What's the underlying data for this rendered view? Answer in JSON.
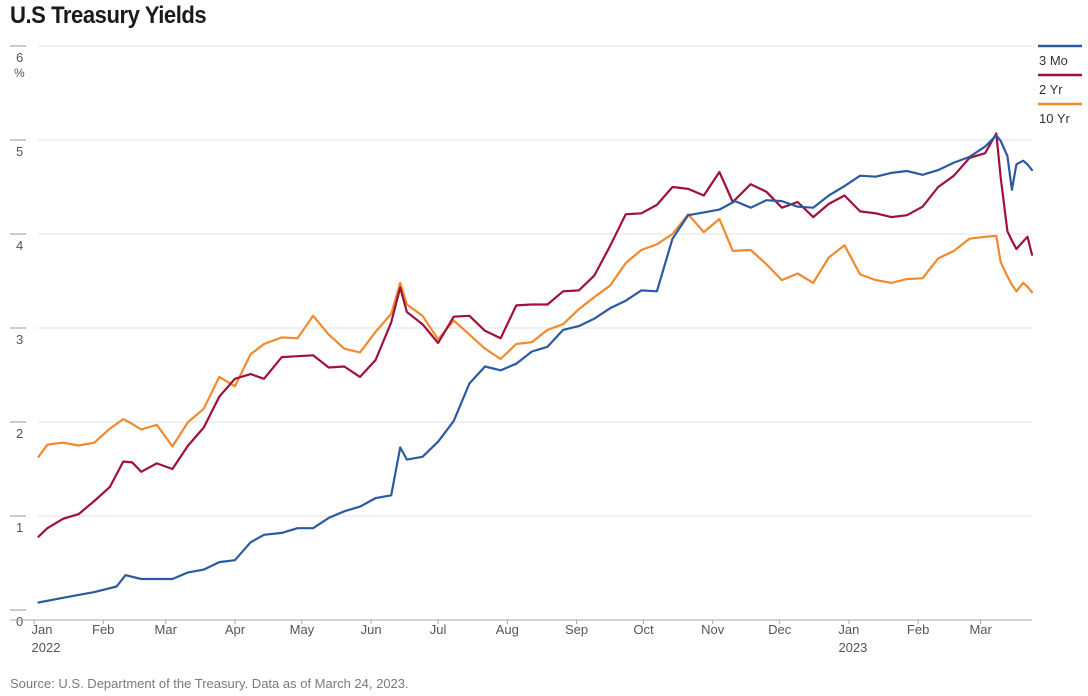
{
  "title": "U.S Treasury Yields",
  "source": "Source: U.S. Department of the Treasury. Data as of March 24, 2023.",
  "chart_data": {
    "type": "line",
    "title": "U.S Treasury Yields",
    "ylabel": "%",
    "ylim": [
      0,
      6
    ],
    "yticks": [
      "0",
      "1",
      "2",
      "3",
      "4",
      "5",
      "6"
    ],
    "xlim": [
      "2022-01-01",
      "2023-03-24"
    ],
    "month_ticks": [
      {
        "date": "2022-01-01",
        "label": "Jan",
        "year": "2022"
      },
      {
        "date": "2022-02-01",
        "label": "Feb"
      },
      {
        "date": "2022-03-01",
        "label": "Mar"
      },
      {
        "date": "2022-04-01",
        "label": "Apr"
      },
      {
        "date": "2022-05-01",
        "label": "May"
      },
      {
        "date": "2022-06-01",
        "label": "Jun"
      },
      {
        "date": "2022-07-01",
        "label": "Jul"
      },
      {
        "date": "2022-08-01",
        "label": "Aug"
      },
      {
        "date": "2022-09-01",
        "label": "Sep"
      },
      {
        "date": "2022-10-01",
        "label": "Oct"
      },
      {
        "date": "2022-11-01",
        "label": "Nov"
      },
      {
        "date": "2022-12-01",
        "label": "Dec"
      },
      {
        "date": "2023-01-01",
        "label": "Jan",
        "year": "2023"
      },
      {
        "date": "2023-02-01",
        "label": "Feb"
      },
      {
        "date": "2023-03-01",
        "label": "Mar"
      }
    ],
    "grid": true,
    "legend_position": "right",
    "series": [
      {
        "name": "3 Mo",
        "color": "#2a5aa0",
        "points": [
          [
            "2022-01-03",
            0.08
          ],
          [
            "2022-01-14",
            0.13
          ],
          [
            "2022-01-28",
            0.19
          ],
          [
            "2022-02-07",
            0.25
          ],
          [
            "2022-02-11",
            0.37
          ],
          [
            "2022-02-18",
            0.33
          ],
          [
            "2022-02-25",
            0.33
          ],
          [
            "2022-03-04",
            0.33
          ],
          [
            "2022-03-11",
            0.4
          ],
          [
            "2022-03-18",
            0.43
          ],
          [
            "2022-03-25",
            0.51
          ],
          [
            "2022-04-01",
            0.53
          ],
          [
            "2022-04-08",
            0.72
          ],
          [
            "2022-04-14",
            0.8
          ],
          [
            "2022-04-22",
            0.82
          ],
          [
            "2022-04-29",
            0.87
          ],
          [
            "2022-05-06",
            0.87
          ],
          [
            "2022-05-13",
            0.98
          ],
          [
            "2022-05-20",
            1.05
          ],
          [
            "2022-05-27",
            1.1
          ],
          [
            "2022-06-03",
            1.19
          ],
          [
            "2022-06-10",
            1.22
          ],
          [
            "2022-06-14",
            1.73
          ],
          [
            "2022-06-17",
            1.6
          ],
          [
            "2022-06-24",
            1.63
          ],
          [
            "2022-07-01",
            1.79
          ],
          [
            "2022-07-08",
            2.01
          ],
          [
            "2022-07-15",
            2.41
          ],
          [
            "2022-07-22",
            2.59
          ],
          [
            "2022-07-29",
            2.55
          ],
          [
            "2022-08-05",
            2.62
          ],
          [
            "2022-08-12",
            2.75
          ],
          [
            "2022-08-19",
            2.8
          ],
          [
            "2022-08-26",
            2.98
          ],
          [
            "2022-09-02",
            3.02
          ],
          [
            "2022-09-09",
            3.1
          ],
          [
            "2022-09-16",
            3.21
          ],
          [
            "2022-09-23",
            3.29
          ],
          [
            "2022-09-30",
            3.4
          ],
          [
            "2022-10-07",
            3.39
          ],
          [
            "2022-10-14",
            3.95
          ],
          [
            "2022-10-21",
            4.2
          ],
          [
            "2022-10-28",
            4.23
          ],
          [
            "2022-11-04",
            4.26
          ],
          [
            "2022-11-11",
            4.35
          ],
          [
            "2022-11-18",
            4.28
          ],
          [
            "2022-11-25",
            4.36
          ],
          [
            "2022-12-02",
            4.35
          ],
          [
            "2022-12-09",
            4.29
          ],
          [
            "2022-12-16",
            4.28
          ],
          [
            "2022-12-23",
            4.41
          ],
          [
            "2022-12-30",
            4.51
          ],
          [
            "2023-01-06",
            4.62
          ],
          [
            "2023-01-13",
            4.61
          ],
          [
            "2023-01-20",
            4.65
          ],
          [
            "2023-01-27",
            4.67
          ],
          [
            "2023-02-03",
            4.63
          ],
          [
            "2023-02-10",
            4.68
          ],
          [
            "2023-02-17",
            4.76
          ],
          [
            "2023-02-24",
            4.82
          ],
          [
            "2023-03-03",
            4.93
          ],
          [
            "2023-03-08",
            5.05
          ],
          [
            "2023-03-10",
            4.99
          ],
          [
            "2023-03-13",
            4.83
          ],
          [
            "2023-03-15",
            4.47
          ],
          [
            "2023-03-17",
            4.74
          ],
          [
            "2023-03-20",
            4.78
          ],
          [
            "2023-03-22",
            4.74
          ],
          [
            "2023-03-24",
            4.68
          ]
        ]
      },
      {
        "name": "2 Yr",
        "color": "#a0103c",
        "points": [
          [
            "2022-01-03",
            0.78
          ],
          [
            "2022-01-07",
            0.87
          ],
          [
            "2022-01-14",
            0.97
          ],
          [
            "2022-01-21",
            1.02
          ],
          [
            "2022-01-28",
            1.16
          ],
          [
            "2022-02-04",
            1.31
          ],
          [
            "2022-02-10",
            1.58
          ],
          [
            "2022-02-14",
            1.57
          ],
          [
            "2022-02-18",
            1.47
          ],
          [
            "2022-02-25",
            1.56
          ],
          [
            "2022-03-04",
            1.5
          ],
          [
            "2022-03-11",
            1.75
          ],
          [
            "2022-03-18",
            1.94
          ],
          [
            "2022-03-25",
            2.27
          ],
          [
            "2022-04-01",
            2.46
          ],
          [
            "2022-04-08",
            2.51
          ],
          [
            "2022-04-14",
            2.46
          ],
          [
            "2022-04-22",
            2.69
          ],
          [
            "2022-04-29",
            2.7
          ],
          [
            "2022-05-06",
            2.71
          ],
          [
            "2022-05-13",
            2.58
          ],
          [
            "2022-05-20",
            2.59
          ],
          [
            "2022-05-27",
            2.48
          ],
          [
            "2022-06-03",
            2.66
          ],
          [
            "2022-06-10",
            3.06
          ],
          [
            "2022-06-14",
            3.43
          ],
          [
            "2022-06-17",
            3.17
          ],
          [
            "2022-06-24",
            3.04
          ],
          [
            "2022-07-01",
            2.84
          ],
          [
            "2022-07-08",
            3.12
          ],
          [
            "2022-07-15",
            3.13
          ],
          [
            "2022-07-22",
            2.97
          ],
          [
            "2022-07-29",
            2.89
          ],
          [
            "2022-08-05",
            3.24
          ],
          [
            "2022-08-12",
            3.25
          ],
          [
            "2022-08-19",
            3.25
          ],
          [
            "2022-08-26",
            3.39
          ],
          [
            "2022-09-02",
            3.4
          ],
          [
            "2022-09-09",
            3.56
          ],
          [
            "2022-09-16",
            3.87
          ],
          [
            "2022-09-23",
            4.21
          ],
          [
            "2022-09-30",
            4.22
          ],
          [
            "2022-10-07",
            4.31
          ],
          [
            "2022-10-14",
            4.5
          ],
          [
            "2022-10-21",
            4.48
          ],
          [
            "2022-10-28",
            4.41
          ],
          [
            "2022-11-04",
            4.66
          ],
          [
            "2022-11-10",
            4.34
          ],
          [
            "2022-11-18",
            4.53
          ],
          [
            "2022-11-25",
            4.45
          ],
          [
            "2022-12-02",
            4.28
          ],
          [
            "2022-12-09",
            4.34
          ],
          [
            "2022-12-16",
            4.18
          ],
          [
            "2022-12-23",
            4.32
          ],
          [
            "2022-12-30",
            4.41
          ],
          [
            "2023-01-06",
            4.24
          ],
          [
            "2023-01-13",
            4.22
          ],
          [
            "2023-01-20",
            4.18
          ],
          [
            "2023-01-27",
            4.2
          ],
          [
            "2023-02-03",
            4.29
          ],
          [
            "2023-02-10",
            4.5
          ],
          [
            "2023-02-17",
            4.62
          ],
          [
            "2023-02-24",
            4.81
          ],
          [
            "2023-03-03",
            4.86
          ],
          [
            "2023-03-08",
            5.07
          ],
          [
            "2023-03-10",
            4.6
          ],
          [
            "2023-03-13",
            4.03
          ],
          [
            "2023-03-15",
            3.93
          ],
          [
            "2023-03-17",
            3.84
          ],
          [
            "2023-03-20",
            3.92
          ],
          [
            "2023-03-22",
            3.97
          ],
          [
            "2023-03-24",
            3.78
          ]
        ]
      },
      {
        "name": "10 Yr",
        "color": "#f08a2c",
        "points": [
          [
            "2022-01-03",
            1.63
          ],
          [
            "2022-01-07",
            1.76
          ],
          [
            "2022-01-14",
            1.78
          ],
          [
            "2022-01-21",
            1.75
          ],
          [
            "2022-01-28",
            1.78
          ],
          [
            "2022-02-04",
            1.93
          ],
          [
            "2022-02-10",
            2.03
          ],
          [
            "2022-02-14",
            1.98
          ],
          [
            "2022-02-18",
            1.92
          ],
          [
            "2022-02-25",
            1.97
          ],
          [
            "2022-03-04",
            1.74
          ],
          [
            "2022-03-11",
            2.0
          ],
          [
            "2022-03-18",
            2.14
          ],
          [
            "2022-03-25",
            2.48
          ],
          [
            "2022-04-01",
            2.38
          ],
          [
            "2022-04-08",
            2.72
          ],
          [
            "2022-04-14",
            2.83
          ],
          [
            "2022-04-22",
            2.9
          ],
          [
            "2022-04-29",
            2.89
          ],
          [
            "2022-05-06",
            3.13
          ],
          [
            "2022-05-13",
            2.93
          ],
          [
            "2022-05-20",
            2.78
          ],
          [
            "2022-05-27",
            2.74
          ],
          [
            "2022-06-03",
            2.96
          ],
          [
            "2022-06-10",
            3.15
          ],
          [
            "2022-06-14",
            3.48
          ],
          [
            "2022-06-17",
            3.25
          ],
          [
            "2022-06-24",
            3.13
          ],
          [
            "2022-07-01",
            2.88
          ],
          [
            "2022-07-08",
            3.08
          ],
          [
            "2022-07-15",
            2.93
          ],
          [
            "2022-07-22",
            2.78
          ],
          [
            "2022-07-29",
            2.67
          ],
          [
            "2022-08-05",
            2.83
          ],
          [
            "2022-08-12",
            2.85
          ],
          [
            "2022-08-19",
            2.98
          ],
          [
            "2022-08-26",
            3.04
          ],
          [
            "2022-09-02",
            3.2
          ],
          [
            "2022-09-09",
            3.33
          ],
          [
            "2022-09-16",
            3.45
          ],
          [
            "2022-09-23",
            3.69
          ],
          [
            "2022-09-30",
            3.83
          ],
          [
            "2022-10-07",
            3.89
          ],
          [
            "2022-10-14",
            4.0
          ],
          [
            "2022-10-21",
            4.21
          ],
          [
            "2022-10-28",
            4.02
          ],
          [
            "2022-11-04",
            4.16
          ],
          [
            "2022-11-10",
            3.82
          ],
          [
            "2022-11-18",
            3.83
          ],
          [
            "2022-11-25",
            3.68
          ],
          [
            "2022-12-02",
            3.51
          ],
          [
            "2022-12-09",
            3.58
          ],
          [
            "2022-12-16",
            3.48
          ],
          [
            "2022-12-23",
            3.75
          ],
          [
            "2022-12-30",
            3.88
          ],
          [
            "2023-01-06",
            3.57
          ],
          [
            "2023-01-13",
            3.51
          ],
          [
            "2023-01-20",
            3.48
          ],
          [
            "2023-01-27",
            3.52
          ],
          [
            "2023-02-03",
            3.53
          ],
          [
            "2023-02-10",
            3.74
          ],
          [
            "2023-02-17",
            3.82
          ],
          [
            "2023-02-24",
            3.95
          ],
          [
            "2023-03-03",
            3.97
          ],
          [
            "2023-03-08",
            3.98
          ],
          [
            "2023-03-10",
            3.7
          ],
          [
            "2023-03-13",
            3.55
          ],
          [
            "2023-03-15",
            3.46
          ],
          [
            "2023-03-17",
            3.39
          ],
          [
            "2023-03-20",
            3.48
          ],
          [
            "2023-03-22",
            3.44
          ],
          [
            "2023-03-24",
            3.38
          ]
        ]
      }
    ]
  }
}
